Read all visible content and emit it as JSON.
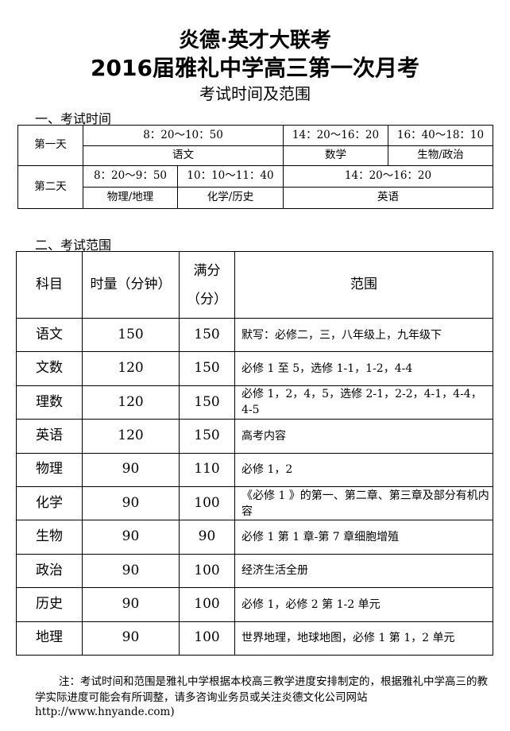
{
  "title1": "炎德·英才大联考",
  "title2": "2016届雅礼中学高三第一次月考",
  "title3": "考试时间及范围",
  "section1": "一、考试时间",
  "schedule": {
    "day1": "第一天",
    "day2": "第二天",
    "d1_t1": "8：20～10：50",
    "d1_s1": "语文",
    "d1_t2": "14：20～16：20",
    "d1_s2": "数学",
    "d1_t3": "16：40～18：10",
    "d1_s3": "生物/政治",
    "d2_t1": "8：20～9：50",
    "d2_s1": "物理/地理",
    "d2_t2": "10：10～11：40",
    "d2_s2": "化学/历史",
    "d2_t3": "14：20～16：20",
    "d2_s3": "英语"
  },
  "section2": "二、考试范围",
  "scope": {
    "headers": {
      "subject": "科目",
      "time": "时量（分钟）",
      "score1": "满分",
      "score2": "（分）",
      "range": "范围"
    },
    "rows": [
      {
        "subject": "语文",
        "time": "150",
        "score": "150",
        "range": "默写：必修二，三，八年级上，九年级下"
      },
      {
        "subject": "文数",
        "time": "120",
        "score": "150",
        "range": "必修 1 至 5，选修 1-1，1-2，4-4"
      },
      {
        "subject": "理数",
        "time": "120",
        "score": "150",
        "range": "必修 1，2，4，5，选修 2-1，2-2，4-1，4-4，4-5"
      },
      {
        "subject": "英语",
        "time": "120",
        "score": "150",
        "range": "高考内容"
      },
      {
        "subject": "物理",
        "time": "90",
        "score": "110",
        "range": "必修 1，2"
      },
      {
        "subject": "化学",
        "time": "90",
        "score": "100",
        "range": "《必修 1 》的第一、第二章、第三章及部分有机内容"
      },
      {
        "subject": "生物",
        "time": "90",
        "score": "90",
        "range": "必修 1 第 1 章-第 7 章细胞增殖"
      },
      {
        "subject": "政治",
        "time": "90",
        "score": "100",
        "range": "经济生活全册"
      },
      {
        "subject": "历史",
        "time": "90",
        "score": "100",
        "range": "必修 1，必修 2 第 1-2 单元"
      },
      {
        "subject": "地理",
        "time": "90",
        "score": "100",
        "range": "世界地理，地球地图，必修 1 第 1，2 单元"
      }
    ]
  },
  "note": "注：考试时间和范围是雅礼中学根据本校高三教学进度安排制定的，根据雅礼中学高三的教学实际进度可能会有所调整，请多咨询业务员或关注炎德文化公司网站",
  "note_url": "http://www.hnyande.com)"
}
